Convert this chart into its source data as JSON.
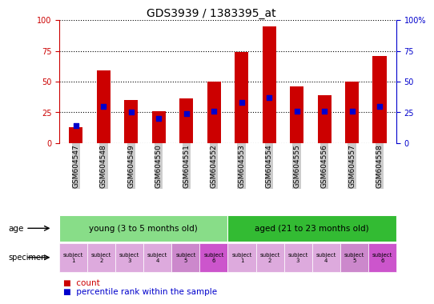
{
  "title": "GDS3939 / 1383395_at",
  "samples": [
    "GSM604547",
    "GSM604548",
    "GSM604549",
    "GSM604550",
    "GSM604551",
    "GSM604552",
    "GSM604553",
    "GSM604554",
    "GSM604555",
    "GSM604556",
    "GSM604557",
    "GSM604558"
  ],
  "count_values": [
    13,
    59,
    35,
    26,
    36,
    50,
    74,
    95,
    46,
    39,
    50,
    71
  ],
  "percentile_values": [
    14,
    30,
    25,
    20,
    24,
    26,
    33,
    37,
    26,
    26,
    26,
    30
  ],
  "bar_color": "#cc0000",
  "dot_color": "#0000cc",
  "bar_width": 0.5,
  "ylim": [
    0,
    100
  ],
  "yticks": [
    0,
    25,
    50,
    75,
    100
  ],
  "ytick_labels_left": [
    "0",
    "25",
    "50",
    "75",
    "100"
  ],
  "ytick_labels_right": [
    "0",
    "25",
    "50",
    "75",
    "100%"
  ],
  "grid_color": "black",
  "age_groups": [
    {
      "label": "young (3 to 5 months old)",
      "start": 0,
      "end": 6,
      "color": "#88dd88"
    },
    {
      "label": "aged (21 to 23 months old)",
      "start": 6,
      "end": 12,
      "color": "#33bb33"
    }
  ],
  "specimen_colors": [
    "#ddaadd",
    "#ddaadd",
    "#ddaadd",
    "#ddaadd",
    "#cc88cc",
    "#cc55cc",
    "#ddaadd",
    "#ddaadd",
    "#ddaadd",
    "#ddaadd",
    "#cc88cc",
    "#cc55cc"
  ],
  "specimen_labels": [
    "subject\n1",
    "subject\n2",
    "subject\n3",
    "subject\n4",
    "subject\n5",
    "subject\n6",
    "subject\n1",
    "subject\n2",
    "subject\n3",
    "subject\n4",
    "subject\n5",
    "subject\n6"
  ],
  "xticklabel_bg": "#cccccc",
  "legend_count_color": "#cc0000",
  "legend_pct_color": "#0000cc",
  "left_axis_color": "#cc0000",
  "right_axis_color": "#0000cc",
  "title_fontsize": 10,
  "tick_fontsize": 7
}
